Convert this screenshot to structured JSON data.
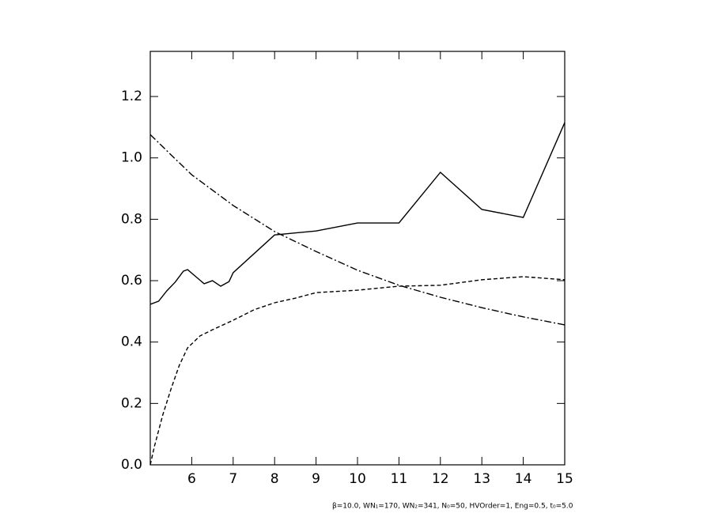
{
  "chart_data": {
    "type": "line",
    "xlim": [
      5,
      15
    ],
    "xticks": [
      6,
      7,
      8,
      9,
      10,
      11,
      12,
      13,
      14,
      15
    ],
    "ylim": [
      0,
      1.347
    ],
    "yticks": [
      {
        "value": 0,
        "label": "0.0"
      },
      0.2,
      0.4,
      0.6,
      0.8,
      {
        "value": 1,
        "label": "1.0"
      },
      1.2
    ],
    "grid": false,
    "annotation": "β=10.0, WN₁=170, WN₂=341, N₀=50, HVOrder=1, Eng=0.5, t₀=5.0",
    "series": [
      {
        "color": "#000000",
        "dash": "solid",
        "x": [
          5.0,
          5.2,
          5.4,
          5.6,
          5.8,
          5.9,
          6.1,
          6.3,
          6.5,
          6.7,
          6.9,
          7.0,
          8.0,
          9.0,
          10.0,
          11.0,
          12.0,
          13.0,
          14.0,
          15.0
        ],
        "values": [
          0.523,
          0.533,
          0.567,
          0.595,
          0.631,
          0.636,
          0.613,
          0.59,
          0.6,
          0.582,
          0.597,
          0.626,
          0.749,
          0.762,
          0.788,
          0.788,
          0.953,
          0.832,
          0.806,
          1.115
        ]
      },
      {
        "color": "#000000",
        "dash": "dashed",
        "x": [
          5.0,
          5.1,
          5.3,
          5.5,
          5.7,
          5.9,
          6.2,
          6.5,
          7.0,
          7.5,
          8.0,
          8.5,
          9.0,
          10.0,
          11.0,
          12.0,
          13.0,
          14.0,
          15.0
        ],
        "values": [
          0.0,
          0.06,
          0.162,
          0.247,
          0.324,
          0.381,
          0.42,
          0.44,
          0.471,
          0.505,
          0.528,
          0.543,
          0.561,
          0.569,
          0.582,
          0.585,
          0.603,
          0.613,
          0.603
        ]
      },
      {
        "color": "#000000",
        "dash": "dashdot",
        "x": [
          5.0,
          5.5,
          6.0,
          7.0,
          8.0,
          9.0,
          10.0,
          11.0,
          12.0,
          13.0,
          14.0,
          15.0
        ],
        "values": [
          1.076,
          1.01,
          0.945,
          0.845,
          0.76,
          0.695,
          0.634,
          0.585,
          0.546,
          0.512,
          0.482,
          0.456
        ]
      }
    ]
  }
}
